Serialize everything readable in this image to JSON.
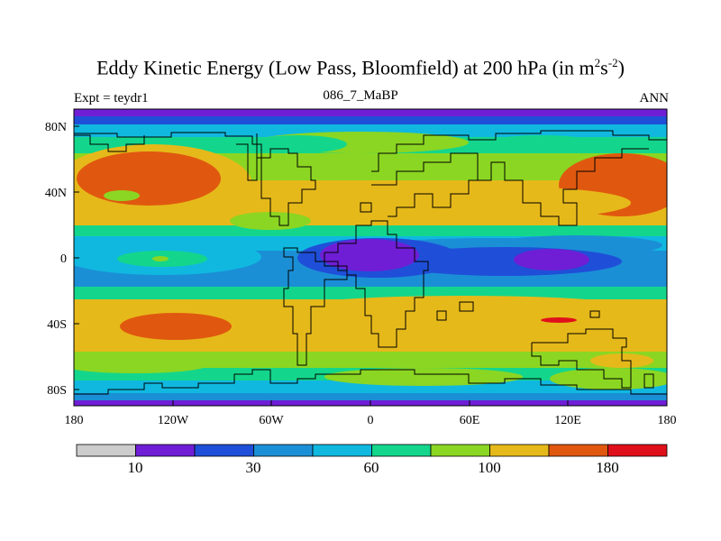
{
  "title": {
    "prefix": "Eddy Kinetic Energy (Low Pass, Bloomfield) at 200 hPa (in m",
    "sup1": "2",
    "mid": "s",
    "sup2": "-2",
    "suffix": ")"
  },
  "left_subtitle": "Expt = teydr1",
  "center_subtitle": "086_7_MaBP",
  "right_subtitle": "ANN",
  "axes": {
    "x_ticks": [
      "180",
      "120W",
      "60W",
      "0",
      "60E",
      "120E",
      "180"
    ],
    "y_ticks": [
      "80N",
      "40N",
      "0",
      "40S",
      "80S"
    ]
  },
  "colorbar": {
    "colors": [
      "#cccccc",
      "#6f1ed6",
      "#1f4fd8",
      "#1b8fd6",
      "#10b8e0",
      "#13d68c",
      "#8bd622",
      "#e6b91a",
      "#e0580f",
      "#e0101a"
    ],
    "labels": [
      "10",
      "30",
      "60",
      "100",
      "180"
    ]
  }
}
